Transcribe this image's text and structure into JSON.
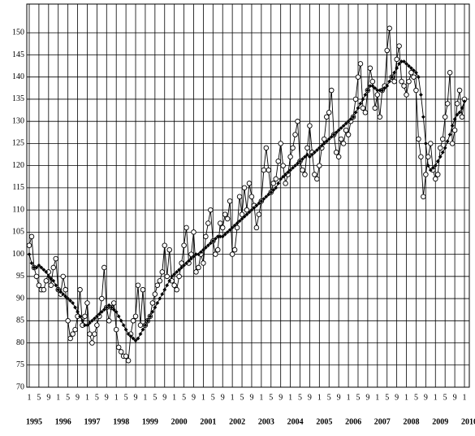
{
  "chart_data": {
    "type": "line",
    "x": [
      "1995-01",
      "1995-02",
      "1995-03",
      "1995-04",
      "1995-05",
      "1995-06",
      "1995-07",
      "1995-08",
      "1995-09",
      "1995-10",
      "1995-11",
      "1995-12",
      "1996-01",
      "1996-02",
      "1996-03",
      "1996-04",
      "1996-05",
      "1996-06",
      "1996-07",
      "1996-08",
      "1996-09",
      "1996-10",
      "1996-11",
      "1996-12",
      "1997-01",
      "1997-02",
      "1997-03",
      "1997-04",
      "1997-05",
      "1997-06",
      "1997-07",
      "1997-08",
      "1997-09",
      "1997-10",
      "1997-11",
      "1997-12",
      "1998-01",
      "1998-02",
      "1998-03",
      "1998-04",
      "1998-05",
      "1998-06",
      "1998-07",
      "1998-08",
      "1998-09",
      "1998-10",
      "1998-11",
      "1998-12",
      "1999-01",
      "1999-02",
      "1999-03",
      "1999-04",
      "1999-05",
      "1999-06",
      "1999-07",
      "1999-08",
      "1999-09",
      "1999-10",
      "1999-11",
      "1999-12",
      "2000-01",
      "2000-02",
      "2000-03",
      "2000-04",
      "2000-05",
      "2000-06",
      "2000-07",
      "2000-08",
      "2000-09",
      "2000-10",
      "2000-11",
      "2000-12",
      "2001-01",
      "2001-02",
      "2001-03",
      "2001-04",
      "2001-05",
      "2001-06",
      "2001-07",
      "2001-08",
      "2001-09",
      "2001-10",
      "2001-11",
      "2001-12",
      "2002-01",
      "2002-02",
      "2002-03",
      "2002-04",
      "2002-05",
      "2002-06",
      "2002-07",
      "2002-08",
      "2002-09",
      "2002-10",
      "2002-11",
      "2002-12",
      "2003-01",
      "2003-02",
      "2003-03",
      "2003-04",
      "2003-05",
      "2003-06",
      "2003-07",
      "2003-08",
      "2003-09",
      "2003-10",
      "2003-11",
      "2003-12",
      "2004-01",
      "2004-02",
      "2004-03",
      "2004-04",
      "2004-05",
      "2004-06",
      "2004-07",
      "2004-08",
      "2004-09",
      "2004-10",
      "2004-11",
      "2004-12",
      "2005-01",
      "2005-02",
      "2005-03",
      "2005-04",
      "2005-05",
      "2005-06",
      "2005-07",
      "2005-08",
      "2005-09",
      "2005-10",
      "2005-11",
      "2005-12",
      "2006-01",
      "2006-02",
      "2006-03",
      "2006-04",
      "2006-05",
      "2006-06",
      "2006-07",
      "2006-08",
      "2006-09",
      "2006-10",
      "2006-11",
      "2006-12",
      "2007-01",
      "2007-02",
      "2007-03",
      "2007-04",
      "2007-05",
      "2007-06",
      "2007-07",
      "2007-08",
      "2007-09",
      "2007-10",
      "2007-11",
      "2007-12",
      "2008-01",
      "2008-02",
      "2008-03",
      "2008-04",
      "2008-05",
      "2008-06",
      "2008-07",
      "2008-08",
      "2008-09",
      "2008-10",
      "2008-11",
      "2008-12",
      "2009-01",
      "2009-02",
      "2009-03",
      "2009-04",
      "2009-05",
      "2009-06",
      "2009-07",
      "2009-08",
      "2009-09",
      "2009-10",
      "2009-11",
      "2009-12",
      "2010-01"
    ],
    "series": [
      {
        "marker": "circle",
        "color": "#000000",
        "values": [
          102,
          104,
          97,
          95,
          93,
          92,
          92,
          94,
          96,
          93,
          97,
          99,
          92,
          91,
          95,
          92,
          85,
          81,
          82,
          83,
          86,
          92,
          84,
          86,
          89,
          82,
          80,
          82,
          84,
          86,
          90,
          97,
          88,
          85,
          88,
          89,
          83,
          79,
          78,
          77,
          77,
          76,
          82,
          85,
          86,
          93,
          84,
          92,
          84,
          85,
          86,
          89,
          91,
          93,
          94,
          96,
          102,
          95,
          101,
          94,
          93,
          92,
          95,
          98,
          102,
          106,
          98,
          100,
          105,
          96,
          97,
          100,
          98,
          104,
          107,
          110,
          103,
          100,
          101,
          107,
          106,
          109,
          108,
          112,
          100,
          101,
          106,
          113,
          109,
          115,
          110,
          116,
          113,
          111,
          106,
          109,
          112,
          119,
          124,
          119,
          114,
          116,
          117,
          121,
          125,
          120,
          116,
          118,
          122,
          124,
          127,
          130,
          121,
          119,
          118,
          124,
          129,
          123,
          118,
          117,
          120,
          124,
          126,
          131,
          132,
          137,
          127,
          123,
          122,
          126,
          125,
          128,
          127,
          130,
          131,
          135,
          140,
          143,
          133,
          132,
          137,
          142,
          139,
          133,
          136,
          131,
          137,
          138,
          146,
          151,
          140,
          139,
          144,
          147,
          139,
          138,
          136,
          139,
          141,
          140,
          137,
          126,
          122,
          113,
          118,
          122,
          125,
          119,
          117,
          118,
          124,
          126,
          131,
          134,
          141,
          125,
          128,
          134,
          137,
          131,
          135
        ]
      },
      {
        "marker": "diamond",
        "color": "#000000",
        "values": [
          100,
          98,
          97,
          97,
          97.5,
          97,
          96.5,
          96,
          95,
          94.5,
          94,
          93,
          92,
          91.5,
          91,
          90.5,
          90,
          89.5,
          89,
          88,
          87,
          86,
          85,
          84,
          84,
          84.5,
          85,
          85.5,
          86,
          86.5,
          87,
          87.5,
          88,
          88.5,
          88,
          87.5,
          87,
          86,
          85,
          84,
          83,
          82,
          81.5,
          81,
          80.5,
          81,
          82,
          83,
          84,
          85,
          86,
          87,
          88,
          89,
          90,
          91,
          92,
          93,
          94,
          95,
          95.5,
          96,
          96.5,
          97,
          97.5,
          98,
          98.5,
          99,
          99.5,
          100,
          100,
          100.5,
          101,
          101.5,
          102,
          102.5,
          103,
          103.5,
          104,
          104,
          104,
          104.5,
          105,
          105.5,
          106,
          106.5,
          107,
          107.5,
          108,
          108.5,
          109,
          109.5,
          110,
          110.5,
          111,
          111.5,
          112,
          112.5,
          113,
          113.5,
          114,
          114.5,
          115,
          116,
          117,
          117.5,
          118,
          118.5,
          119,
          119.5,
          120,
          120.5,
          121,
          121.5,
          122,
          122.5,
          122,
          122.5,
          123,
          123.5,
          124,
          124.5,
          125,
          125.5,
          126,
          126.5,
          127,
          127.5,
          128,
          128.5,
          129,
          129.5,
          130,
          130.5,
          131,
          132,
          133,
          134,
          135,
          136,
          137,
          138,
          138,
          137.5,
          137,
          137,
          137,
          137.5,
          138,
          139,
          140,
          141,
          142,
          143,
          143.5,
          143.5,
          143,
          142.5,
          142,
          141.5,
          141,
          140,
          136,
          131,
          125,
          120,
          119,
          119.5,
          120,
          121,
          122,
          123,
          124,
          125.5,
          127,
          129,
          130.5,
          131.5,
          132,
          133,
          134.5
        ]
      }
    ],
    "ylim": [
      70,
      155
    ],
    "yticks": [
      70,
      75,
      80,
      85,
      90,
      95,
      100,
      105,
      110,
      115,
      120,
      125,
      130,
      135,
      140,
      145,
      150
    ],
    "xticks": [
      {
        "value": "1995-01",
        "label": "1"
      },
      {
        "value": "1995-05",
        "label": "5"
      },
      {
        "value": "1995-09",
        "label": "9"
      },
      {
        "value": "1996-01",
        "label": "1"
      },
      {
        "value": "1996-05",
        "label": "5"
      },
      {
        "value": "1996-09",
        "label": "9"
      },
      {
        "value": "1997-01",
        "label": "1"
      },
      {
        "value": "1997-05",
        "label": "5"
      },
      {
        "value": "1997-09",
        "label": "9"
      },
      {
        "value": "1998-01",
        "label": "1"
      },
      {
        "value": "1998-05",
        "label": "5"
      },
      {
        "value": "1998-09",
        "label": "9"
      },
      {
        "value": "1999-01",
        "label": "1"
      },
      {
        "value": "1999-05",
        "label": "5"
      },
      {
        "value": "1999-09",
        "label": "9"
      },
      {
        "value": "2000-01",
        "label": "1"
      },
      {
        "value": "2000-05",
        "label": "5"
      },
      {
        "value": "2000-09",
        "label": "9"
      },
      {
        "value": "2001-01",
        "label": "1"
      },
      {
        "value": "2001-05",
        "label": "5"
      },
      {
        "value": "2001-09",
        "label": "9"
      },
      {
        "value": "2002-01",
        "label": "1"
      },
      {
        "value": "2002-05",
        "label": "5"
      },
      {
        "value": "2002-09",
        "label": "9"
      },
      {
        "value": "2003-01",
        "label": "1"
      },
      {
        "value": "2003-05",
        "label": "5"
      },
      {
        "value": "2003-09",
        "label": "9"
      },
      {
        "value": "2004-01",
        "label": "1"
      },
      {
        "value": "2004-05",
        "label": "5"
      },
      {
        "value": "2004-09",
        "label": "9"
      },
      {
        "value": "2005-01",
        "label": "1"
      },
      {
        "value": "2005-05",
        "label": "5"
      },
      {
        "value": "2005-09",
        "label": "9"
      },
      {
        "value": "2006-01",
        "label": "1"
      },
      {
        "value": "2006-05",
        "label": "5"
      },
      {
        "value": "2006-09",
        "label": "9"
      },
      {
        "value": "2007-01",
        "label": "1"
      },
      {
        "value": "2007-05",
        "label": "5"
      },
      {
        "value": "2007-09",
        "label": "9"
      },
      {
        "value": "2008-01",
        "label": "1"
      },
      {
        "value": "2008-05",
        "label": "5"
      },
      {
        "value": "2008-09",
        "label": "9"
      },
      {
        "value": "2009-01",
        "label": "1"
      },
      {
        "value": "2009-05",
        "label": "5"
      },
      {
        "value": "2009-09",
        "label": "9"
      },
      {
        "value": "2010-01",
        "label": "1"
      }
    ],
    "year_labels": [
      {
        "value": "1995-01",
        "label": "1995"
      },
      {
        "value": "1996-01",
        "label": "1996"
      },
      {
        "value": "1997-01",
        "label": "1997"
      },
      {
        "value": "1998-01",
        "label": "1998"
      },
      {
        "value": "1999-01",
        "label": "1999"
      },
      {
        "value": "2000-01",
        "label": "2000"
      },
      {
        "value": "2001-01",
        "label": "2001"
      },
      {
        "value": "2002-01",
        "label": "2002"
      },
      {
        "value": "2003-01",
        "label": "2003"
      },
      {
        "value": "2004-01",
        "label": "2004"
      },
      {
        "value": "2005-01",
        "label": "2005"
      },
      {
        "value": "2006-01",
        "label": "2006"
      },
      {
        "value": "2007-01",
        "label": "2007"
      },
      {
        "value": "2008-01",
        "label": "2008"
      },
      {
        "value": "2009-01",
        "label": "2009"
      },
      {
        "value": "2010-01",
        "label": "2010"
      }
    ],
    "grid": true
  }
}
